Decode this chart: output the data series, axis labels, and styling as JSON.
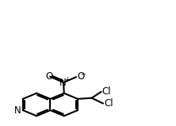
{
  "bg": "#ffffff",
  "lc": "#000000",
  "lw": 1.5,
  "BL": 0.092,
  "figsize": [
    2.22,
    1.59
  ],
  "dpi": 100,
  "fs": 8.5,
  "off": 0.011,
  "fr": 0.13,
  "xlim": [
    0.0,
    1.0
  ],
  "ylim": [
    0.0,
    1.0
  ],
  "N_ring_label": "N",
  "nitro_N_label": "N",
  "nitro_N_charge": "+",
  "nitro_O1_label": "O",
  "nitro_O2_label": "O",
  "nitro_O2_charge": "−",
  "Cl1_label": "Cl",
  "Cl2_label": "Cl"
}
